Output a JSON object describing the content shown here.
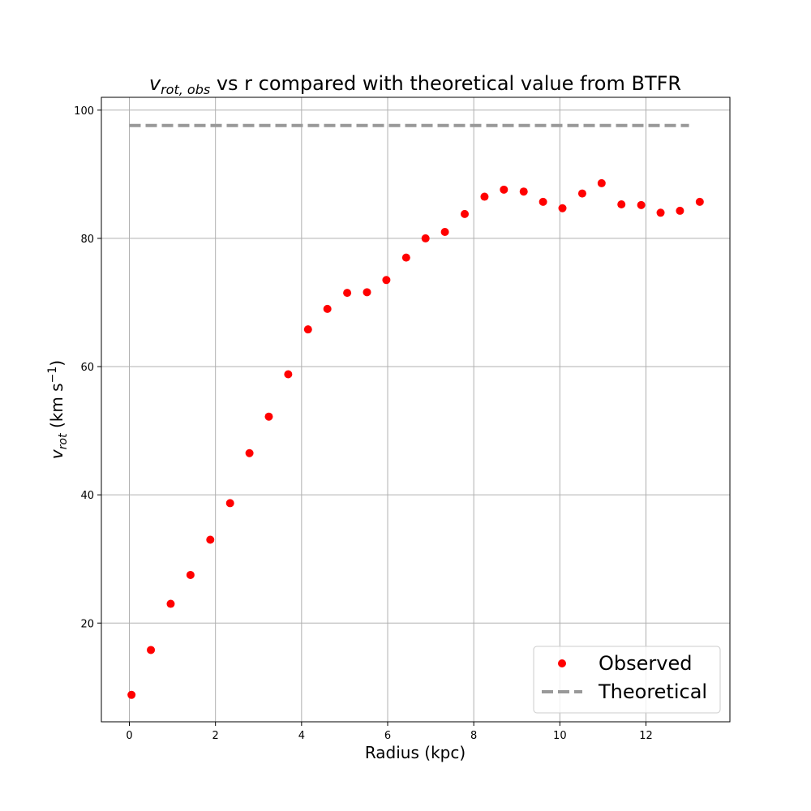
{
  "chart_data": {
    "type": "scatter",
    "title": {
      "symbol": "v",
      "subscript": "rot, obs",
      "rest": " vs r compared with theoretical value from BTFR"
    },
    "xlabel": "Radius (kpc)",
    "ylabel": {
      "symbol": "v",
      "subscript": "rot",
      "units_prefix": " (km s",
      "units_exponent": "−1",
      "units_suffix": ")"
    },
    "xlim": [
      -0.65,
      13.95
    ],
    "ylim": [
      4.6,
      102
    ],
    "xticks": [
      0,
      2,
      4,
      6,
      8,
      10,
      12
    ],
    "yticks": [
      20,
      40,
      60,
      80,
      100
    ],
    "grid": true,
    "legend_position": "lower-right",
    "series": [
      {
        "name": "Observed",
        "kind": "scatter",
        "color": "#ff0000",
        "x": [
          0.05,
          0.5,
          0.96,
          1.42,
          1.88,
          2.34,
          2.79,
          3.24,
          3.69,
          4.15,
          4.6,
          5.06,
          5.52,
          5.97,
          6.43,
          6.88,
          7.33,
          7.79,
          8.25,
          8.7,
          9.16,
          9.61,
          10.06,
          10.52,
          10.97,
          11.43,
          11.89,
          12.34,
          12.79,
          13.25
        ],
        "y": [
          8.8,
          15.8,
          23.0,
          27.5,
          33.0,
          38.7,
          46.5,
          52.2,
          58.8,
          65.8,
          69.0,
          71.5,
          71.6,
          73.5,
          77.0,
          80.0,
          81.0,
          83.8,
          86.5,
          87.6,
          87.3,
          85.7,
          84.7,
          87.0,
          88.6,
          85.3,
          85.2,
          84.0,
          84.3,
          85.7
        ]
      },
      {
        "name": "Theoretical",
        "kind": "dashed-line",
        "color": "#999999",
        "x": [
          0,
          13
        ],
        "y": [
          97.6,
          97.6
        ]
      }
    ]
  }
}
